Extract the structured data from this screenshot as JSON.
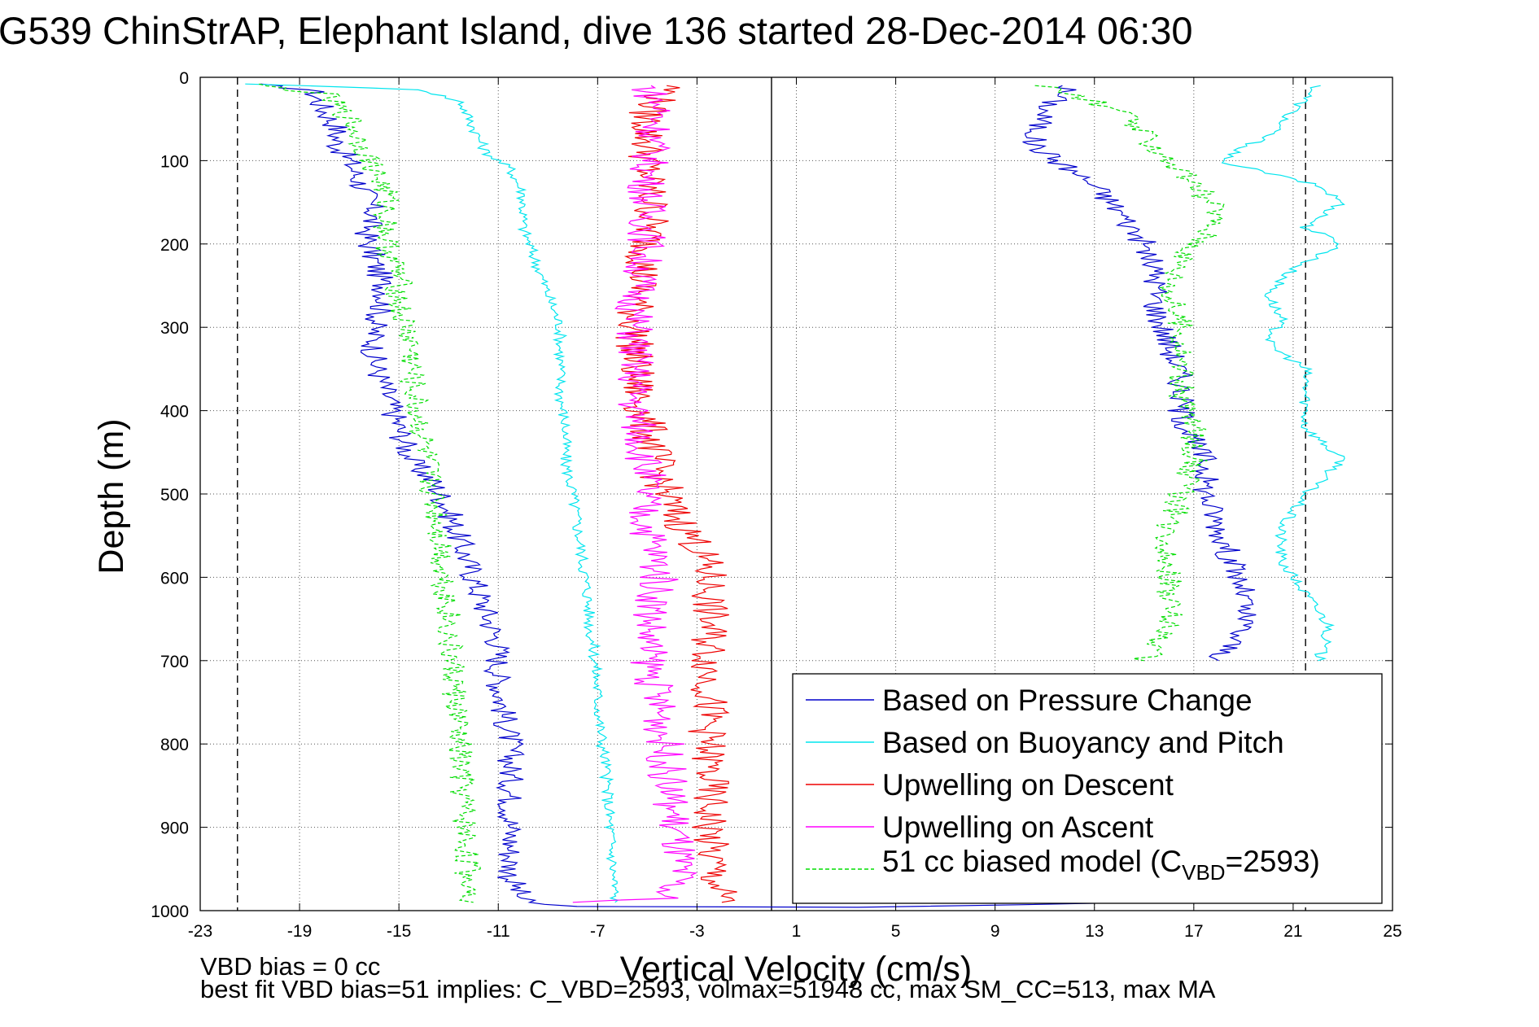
{
  "chart_data": {
    "type": "line",
    "title": "G539 ChinStrAP, Elephant Island, dive 136 started 28-Dec-2014 06:30",
    "xlabel": "Vertical Velocity (cm/s)",
    "ylabel": "Depth (m)",
    "xlim": [
      -23,
      25
    ],
    "ylim": [
      0,
      1000
    ],
    "y_reversed": true,
    "xticks": [
      "-23",
      "-19",
      "-15",
      "-11",
      "-7",
      "-3",
      "1",
      "5",
      "9",
      "13",
      "17",
      "21",
      "25"
    ],
    "yticks": [
      "0",
      "100",
      "200",
      "300",
      "400",
      "500",
      "600",
      "700",
      "800",
      "900",
      "1000"
    ],
    "grid": true,
    "legend_position": "bottom-right",
    "reference_lines": [
      {
        "x": -21.5,
        "style": "dashed",
        "color": "#000000"
      },
      {
        "x": 21.5,
        "style": "dashed",
        "color": "#000000"
      },
      {
        "x": 0,
        "style": "solid",
        "color": "#000000"
      }
    ],
    "series": [
      {
        "name": "Based on Pressure Change",
        "color": "#0000cc",
        "style": "solid",
        "points": [
          [
            -21,
            8
          ],
          [
            -18.5,
            15
          ],
          [
            -18,
            40
          ],
          [
            -17.5,
            60
          ],
          [
            -17.5,
            80
          ],
          [
            -17,
            100
          ],
          [
            -16.5,
            130
          ],
          [
            -16,
            160
          ],
          [
            -16.3,
            190
          ],
          [
            -16,
            220
          ],
          [
            -15.5,
            260
          ],
          [
            -16,
            300
          ],
          [
            -16,
            340
          ],
          [
            -15.5,
            380
          ],
          [
            -15,
            420
          ],
          [
            -14.5,
            460
          ],
          [
            -13.5,
            490
          ],
          [
            -13,
            520
          ],
          [
            -12.5,
            560
          ],
          [
            -12,
            600
          ],
          [
            -11.5,
            640
          ],
          [
            -11,
            680
          ],
          [
            -11,
            720
          ],
          [
            -10.8,
            760
          ],
          [
            -10.5,
            800
          ],
          [
            -10.5,
            840
          ],
          [
            -10.5,
            880
          ],
          [
            -10.5,
            920
          ],
          [
            -10.5,
            960
          ],
          [
            -10,
            990
          ],
          [
            -8,
            995
          ],
          [
            4,
            996
          ],
          [
            15,
            990
          ]
        ],
        "points_ascent": [
          [
            12,
            10
          ],
          [
            11,
            40
          ],
          [
            10.5,
            80
          ],
          [
            11.5,
            100
          ],
          [
            13,
            130
          ],
          [
            14,
            160
          ],
          [
            15,
            200
          ],
          [
            15.5,
            240
          ],
          [
            15.5,
            280
          ],
          [
            16,
            320
          ],
          [
            16.5,
            360
          ],
          [
            16.5,
            400
          ],
          [
            17,
            440
          ],
          [
            17.5,
            460
          ],
          [
            17.5,
            500
          ],
          [
            18,
            540
          ],
          [
            18.5,
            580
          ],
          [
            19,
            620
          ],
          [
            19,
            660
          ],
          [
            18,
            700
          ]
        ]
      },
      {
        "name": "Based on Buoyancy and Pitch",
        "color": "#00e5ee",
        "style": "solid",
        "points": [
          [
            -21,
            8
          ],
          [
            -14,
            15
          ],
          [
            -12.5,
            30
          ],
          [
            -12,
            60
          ],
          [
            -11.5,
            90
          ],
          [
            -10.5,
            110
          ],
          [
            -10,
            140
          ],
          [
            -10,
            180
          ],
          [
            -9.5,
            220
          ],
          [
            -9,
            260
          ],
          [
            -8.5,
            300
          ],
          [
            -8.5,
            340
          ],
          [
            -8.5,
            380
          ],
          [
            -8.3,
            420
          ],
          [
            -8.3,
            460
          ],
          [
            -8,
            500
          ],
          [
            -7.8,
            540
          ],
          [
            -7.6,
            580
          ],
          [
            -7.4,
            620
          ],
          [
            -7.3,
            660
          ],
          [
            -7.1,
            700
          ],
          [
            -7,
            740
          ],
          [
            -6.9,
            780
          ],
          [
            -6.7,
            820
          ],
          [
            -6.6,
            860
          ],
          [
            -6.5,
            900
          ],
          [
            -6.4,
            940
          ],
          [
            -6.3,
            990
          ]
        ],
        "points_ascent": [
          [
            22,
            10
          ],
          [
            21,
            40
          ],
          [
            20,
            70
          ],
          [
            18,
            100
          ],
          [
            22,
            130
          ],
          [
            23,
            150
          ],
          [
            21.5,
            180
          ],
          [
            23,
            200
          ],
          [
            21,
            230
          ],
          [
            20,
            260
          ],
          [
            20.5,
            290
          ],
          [
            20,
            320
          ],
          [
            21.5,
            350
          ],
          [
            21.5,
            380
          ],
          [
            21.5,
            420
          ],
          [
            23,
            460
          ],
          [
            21.5,
            500
          ],
          [
            20.5,
            540
          ],
          [
            20.5,
            580
          ],
          [
            21.5,
            620
          ],
          [
            22.5,
            660
          ],
          [
            22,
            700
          ]
        ]
      },
      {
        "name": "Upwelling on Descent",
        "color": "#ee0000",
        "style": "solid",
        "points": [
          [
            -4,
            10
          ],
          [
            -5,
            40
          ],
          [
            -5,
            80
          ],
          [
            -5,
            120
          ],
          [
            -4.8,
            160
          ],
          [
            -5,
            200
          ],
          [
            -5.2,
            240
          ],
          [
            -5.5,
            280
          ],
          [
            -5.5,
            320
          ],
          [
            -5.5,
            360
          ],
          [
            -5.2,
            400
          ],
          [
            -4.8,
            440
          ],
          [
            -4.5,
            480
          ],
          [
            -4,
            520
          ],
          [
            -3,
            560
          ],
          [
            -2.5,
            600
          ],
          [
            -2.5,
            640
          ],
          [
            -2.5,
            680
          ],
          [
            -2.5,
            720
          ],
          [
            -2.5,
            760
          ],
          [
            -2.6,
            800
          ],
          [
            -2.5,
            840
          ],
          [
            -2.5,
            880
          ],
          [
            -2.5,
            920
          ],
          [
            -2.3,
            960
          ],
          [
            -2,
            990
          ]
        ]
      },
      {
        "name": "Upwelling on Ascent",
        "color": "#ff00ff",
        "style": "solid",
        "points": [
          [
            -5,
            10
          ],
          [
            -4.5,
            40
          ],
          [
            -4.8,
            80
          ],
          [
            -5,
            120
          ],
          [
            -5,
            160
          ],
          [
            -5,
            200
          ],
          [
            -5.3,
            240
          ],
          [
            -5.5,
            280
          ],
          [
            -5.5,
            320
          ],
          [
            -5.5,
            360
          ],
          [
            -5.5,
            400
          ],
          [
            -5.2,
            440
          ],
          [
            -5,
            480
          ],
          [
            -5.2,
            520
          ],
          [
            -4.8,
            560
          ],
          [
            -4.5,
            600
          ],
          [
            -4.8,
            640
          ],
          [
            -5,
            680
          ],
          [
            -4.8,
            720
          ],
          [
            -4.5,
            760
          ],
          [
            -4.3,
            800
          ],
          [
            -4.2,
            840
          ],
          [
            -4,
            880
          ],
          [
            -3.8,
            920
          ],
          [
            -3.8,
            960
          ],
          [
            -4.5,
            985
          ],
          [
            -8,
            990
          ]
        ]
      },
      {
        "name": "51 cc biased model (C_VBD=2593)",
        "color": "#00dd00",
        "style": "dashed",
        "points": [
          [
            -21,
            8
          ],
          [
            -18,
            20
          ],
          [
            -17,
            50
          ],
          [
            -16.5,
            80
          ],
          [
            -16,
            110
          ],
          [
            -15.5,
            140
          ],
          [
            -15.5,
            170
          ],
          [
            -15.5,
            200
          ],
          [
            -15,
            240
          ],
          [
            -15,
            280
          ],
          [
            -14.5,
            320
          ],
          [
            -14.5,
            360
          ],
          [
            -14.3,
            400
          ],
          [
            -14,
            440
          ],
          [
            -13.8,
            480
          ],
          [
            -13.5,
            520
          ],
          [
            -13.3,
            560
          ],
          [
            -13.2,
            600
          ],
          [
            -13,
            640
          ],
          [
            -13,
            680
          ],
          [
            -12.8,
            720
          ],
          [
            -12.7,
            760
          ],
          [
            -12.6,
            800
          ],
          [
            -12.5,
            840
          ],
          [
            -12.4,
            880
          ],
          [
            -12.3,
            920
          ],
          [
            -12.2,
            960
          ],
          [
            -12,
            990
          ]
        ],
        "points_ascent": [
          [
            11,
            10
          ],
          [
            14,
            40
          ],
          [
            15,
            70
          ],
          [
            16,
            100
          ],
          [
            17,
            130
          ],
          [
            18,
            160
          ],
          [
            17.5,
            190
          ],
          [
            16.5,
            220
          ],
          [
            16,
            260
          ],
          [
            16.5,
            300
          ],
          [
            16.5,
            340
          ],
          [
            16.5,
            380
          ],
          [
            17,
            420
          ],
          [
            17,
            460
          ],
          [
            16.5,
            500
          ],
          [
            16,
            540
          ],
          [
            16,
            580
          ],
          [
            16,
            620
          ],
          [
            16,
            660
          ],
          [
            15,
            700
          ]
        ]
      }
    ],
    "legend_entries": [
      "Based on Pressure Change",
      "Based on Buoyancy and Pitch",
      "Upwelling on Descent",
      "Upwelling on Ascent"
    ],
    "legend_model_prefix": "51 cc biased model (C",
    "legend_model_sub": "VBD",
    "legend_model_suffix": "=2593)",
    "annotation_bias": "VBD bias = 0 cc",
    "annotation_fit": "best fit VBD bias=51 implies: C_VBD=2593, volmax=51948 cc, max SM_CC=513, max MA"
  }
}
